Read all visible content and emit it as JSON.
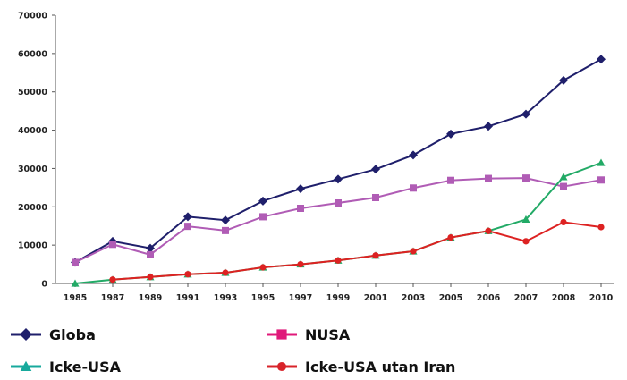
{
  "chart_data": {
    "type": "line",
    "title": "",
    "xlabel": "",
    "ylabel": "",
    "categories": [
      "1985",
      "1987",
      "1989",
      "1991",
      "1993",
      "1995",
      "1997",
      "1999",
      "2001",
      "2003",
      "2005",
      "2006",
      "2007",
      "2008",
      "2010"
    ],
    "ylim": [
      0,
      70000
    ],
    "yticks": [
      "0",
      "10000",
      "20000",
      "30000",
      "40000",
      "50000",
      "60000",
      "70000"
    ],
    "grid": false,
    "legend_position": "bottom",
    "series": [
      {
        "name": "Globa",
        "color": "#1f1f6b",
        "marker": "diamond",
        "values": [
          5500,
          11000,
          9200,
          17400,
          16500,
          21500,
          24700,
          27200,
          29800,
          33500,
          39000,
          41000,
          44200,
          53000,
          58500
        ]
      },
      {
        "name": "NUSA",
        "color": "#b05cb5",
        "marker": "square",
        "values": [
          5500,
          10200,
          7500,
          14900,
          13800,
          17400,
          19600,
          21000,
          22400,
          24900,
          26900,
          27400,
          27500,
          25300,
          27000
        ]
      },
      {
        "name": "Icke-USA",
        "color": "#22aa66",
        "marker": "triangle",
        "values": [
          0,
          1000,
          1700,
          2400,
          2800,
          4200,
          5000,
          6000,
          7300,
          8400,
          12000,
          13700,
          16700,
          27800,
          31500
        ]
      },
      {
        "name": "Icke-USA utan Iran",
        "color": "#dd2222",
        "marker": "circle",
        "values": [
          null,
          1000,
          1700,
          2400,
          2800,
          4200,
          5000,
          6000,
          7300,
          8400,
          12000,
          13700,
          11000,
          16000,
          14700
        ]
      }
    ]
  },
  "legend_icon_colors": {
    "Globa": "#1f1f6b",
    "NUSA": "#e0197a",
    "Icke-USA": "#17a99c",
    "Icke-USA utan Iran": "#d8232a"
  }
}
